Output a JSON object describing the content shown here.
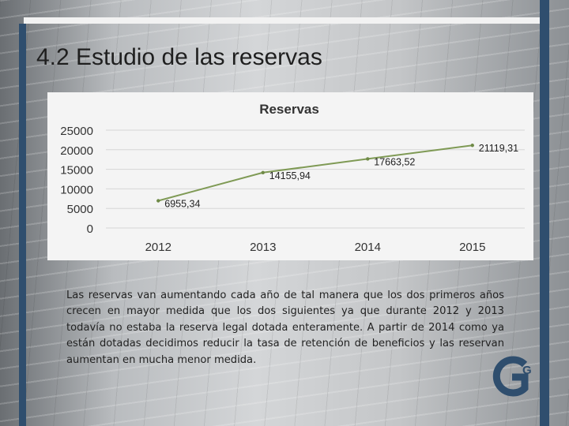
{
  "slide": {
    "title": "4.2 Estudio de las reservas",
    "body": "Las reservas van aumentando cada año de tal manera que los dos primeros años crecen en mayor medida que los dos siguientes ya que durante 2012 y 2013 todavía no estaba la reserva legal dotada enteramente. A partir de 2014 como ya están dotadas decidimos reducir la tasa de retención de beneficios y las reservan aumentan en mucha menor medida."
  },
  "colors": {
    "accent_bar": "#2f4e6e",
    "series_line": "#7f9a55",
    "logo": "#2f4e6e"
  },
  "logo": {
    "icon": "g-logo-icon",
    "letter": "G"
  },
  "chart_data": {
    "type": "line",
    "title": "Reservas",
    "categories": [
      "2012",
      "2013",
      "2014",
      "2015"
    ],
    "series": [
      {
        "values": [
          6955.34,
          14155.94,
          17663.52,
          21119.31
        ]
      }
    ],
    "data_labels": [
      "6955,34",
      "14155,94",
      "17663,52",
      "21119,31"
    ],
    "y_ticks": [
      "0",
      "5000",
      "10000",
      "15000",
      "20000",
      "25000"
    ],
    "ylim": [
      0,
      25000
    ],
    "grid": true,
    "legend": "none"
  }
}
